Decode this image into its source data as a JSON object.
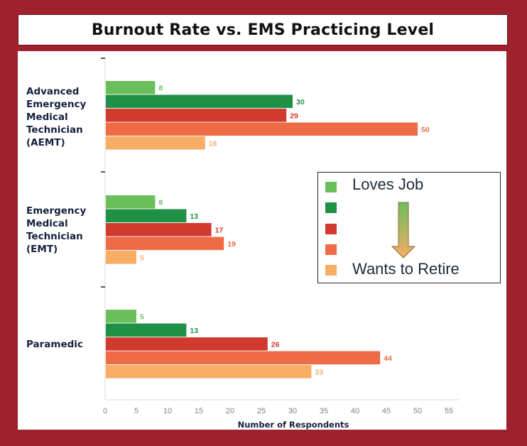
{
  "chart_data": {
    "type": "bar",
    "orientation": "horizontal",
    "title": "Burnout Rate vs. EMS Practicing Level",
    "xlabel": "Number of Respondents",
    "ylabel": "",
    "xlim": [
      0,
      55
    ],
    "xticks": [
      0,
      5,
      10,
      15,
      20,
      25,
      30,
      35,
      40,
      45,
      50,
      55
    ],
    "grid": false,
    "categories": [
      "Advanced\nEmergency\nMedical\nTechnician\n(AEMT)",
      "Emergency\nMedical\nTechnician\n(EMT)",
      "Paramedic"
    ],
    "series": [
      {
        "name": "Loves Job",
        "color": "#6bbf5a",
        "values": [
          8,
          8,
          5
        ]
      },
      {
        "name": "",
        "color": "#1f9146",
        "values": [
          30,
          13,
          13
        ]
      },
      {
        "name": "",
        "color": "#d13a2e",
        "values": [
          29,
          17,
          26
        ]
      },
      {
        "name": "",
        "color": "#ee6b45",
        "values": [
          50,
          19,
          44
        ]
      },
      {
        "name": "Wants to Retire",
        "color": "#f8ad67",
        "values": [
          16,
          5,
          33
        ]
      }
    ],
    "legend": {
      "position": "right",
      "top_label": "Loves Job",
      "bottom_label": "Wants to Retire",
      "arrow_colors": [
        "#6bbf5a",
        "#f8ad67"
      ]
    }
  }
}
